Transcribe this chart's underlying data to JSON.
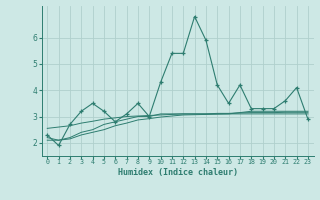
{
  "title": "",
  "xlabel": "Humidex (Indice chaleur)",
  "x": [
    0,
    1,
    2,
    3,
    4,
    5,
    6,
    7,
    8,
    9,
    10,
    11,
    12,
    13,
    14,
    15,
    16,
    17,
    18,
    19,
    20,
    21,
    22,
    23
  ],
  "y_main": [
    2.3,
    1.9,
    2.7,
    3.2,
    3.5,
    3.2,
    2.8,
    3.1,
    3.5,
    3.0,
    4.3,
    5.4,
    5.4,
    6.8,
    5.9,
    4.2,
    3.5,
    4.2,
    3.3,
    3.3,
    3.3,
    3.6,
    4.1,
    2.9
  ],
  "y_trend1": [
    2.2,
    2.1,
    2.2,
    2.4,
    2.5,
    2.7,
    2.8,
    2.9,
    3.0,
    3.0,
    3.1,
    3.1,
    3.1,
    3.1,
    3.1,
    3.1,
    3.1,
    3.15,
    3.2,
    3.2,
    3.2,
    3.2,
    3.2,
    3.2
  ],
  "y_trend2": [
    2.55,
    2.6,
    2.65,
    2.75,
    2.82,
    2.9,
    2.95,
    3.0,
    3.02,
    3.04,
    3.06,
    3.08,
    3.1,
    3.1,
    3.1,
    3.12,
    3.12,
    3.14,
    3.15,
    3.15,
    3.15,
    3.16,
    3.16,
    3.16
  ],
  "y_trend3": [
    2.1,
    2.1,
    2.15,
    2.3,
    2.4,
    2.5,
    2.65,
    2.75,
    2.87,
    2.92,
    2.98,
    3.02,
    3.06,
    3.07,
    3.08,
    3.09,
    3.1,
    3.1,
    3.1,
    3.1,
    3.1,
    3.1,
    3.1,
    3.1
  ],
  "line_color": "#2e7d70",
  "bg_color": "#cde8e5",
  "grid_color": "#b0d0cc",
  "tick_color": "#2e7d70",
  "ylim": [
    1.5,
    7.2
  ],
  "xlim": [
    -0.5,
    23.5
  ],
  "yticks": [
    2,
    3,
    4,
    5,
    6
  ],
  "xtick_labels": [
    "0",
    "1",
    "2",
    "3",
    "4",
    "5",
    "6",
    "7",
    "8",
    "9",
    "10",
    "11",
    "12",
    "13",
    "14",
    "15",
    "16",
    "17",
    "18",
    "19",
    "20",
    "21",
    "22",
    "23"
  ]
}
